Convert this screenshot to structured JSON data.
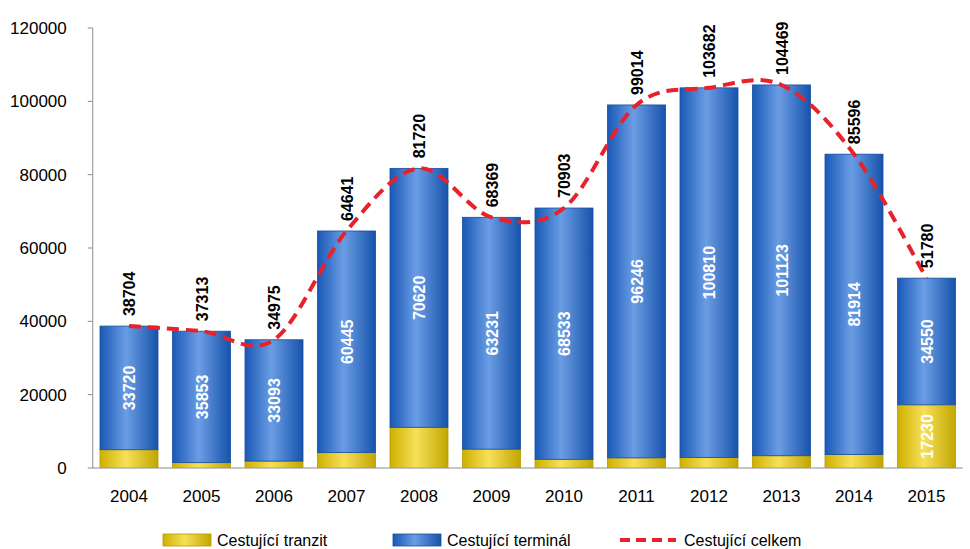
{
  "chart_data": {
    "type": "bar",
    "stacked": true,
    "data_labels": true,
    "grid": false,
    "legend": "bottom",
    "categories": [
      "2004",
      "2005",
      "2006",
      "2007",
      "2008",
      "2009",
      "2010",
      "2011",
      "2012",
      "2013",
      "2014",
      "2015"
    ],
    "ylim": [
      0,
      120000
    ],
    "yticks": [
      0,
      20000,
      40000,
      60000,
      80000,
      100000,
      120000
    ],
    "series": [
      {
        "name": "Cestující tranzit",
        "color": "#f2cf00",
        "values": [
          4984,
          1460,
          1882,
          4196,
          11100,
          5138,
          2370,
          2768,
          2872,
          3346,
          3682,
          17230
        ],
        "value_labels": [
          null,
          null,
          null,
          null,
          null,
          null,
          null,
          null,
          null,
          null,
          null,
          "17230"
        ]
      },
      {
        "name": "Cestující terminál",
        "color": "#1c68d6",
        "values": [
          33720,
          35853,
          33093,
          60445,
          70620,
          63231,
          68533,
          96246,
          100810,
          101123,
          81914,
          34550
        ]
      },
      {
        "name": "Cestující celkem",
        "type": "line",
        "line_style": "dashed",
        "color": "#e8212a",
        "values": [
          38704,
          37313,
          34975,
          64641,
          81720,
          68369,
          70903,
          99014,
          103682,
          104469,
          85596,
          51780
        ]
      }
    ]
  }
}
